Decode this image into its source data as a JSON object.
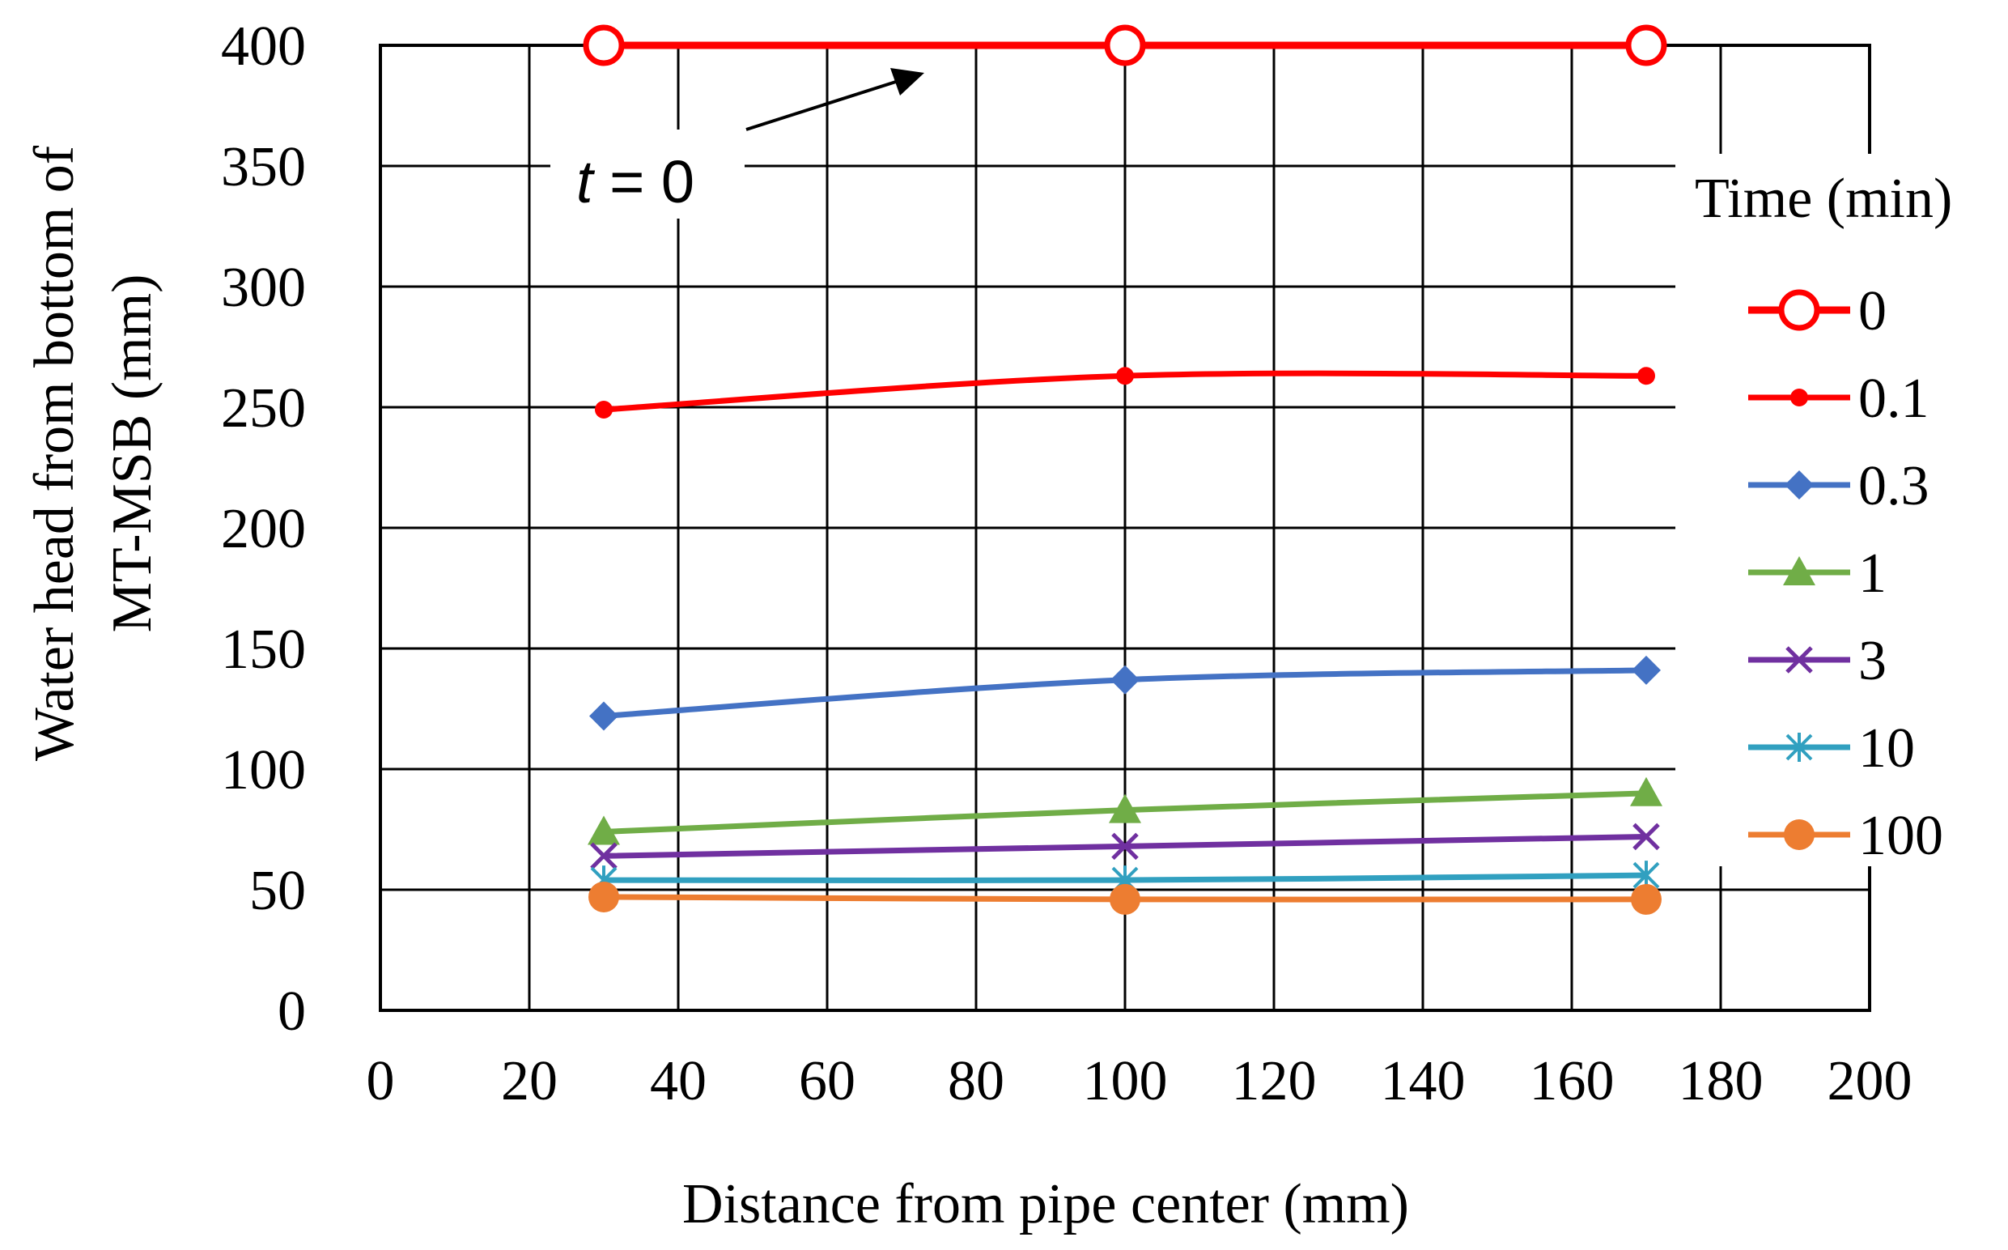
{
  "chart_data": {
    "type": "line",
    "title": "",
    "xlabel": "Distance from pipe center (mm)",
    "ylabel_lines": [
      "Water head  from bottom of",
      "MT-MSB (mm)"
    ],
    "xlim": [
      0,
      200
    ],
    "ylim": [
      0,
      400
    ],
    "x_ticks": [
      0,
      20,
      40,
      60,
      80,
      100,
      120,
      140,
      160,
      180,
      200
    ],
    "y_ticks": [
      0,
      50,
      100,
      150,
      200,
      250,
      300,
      350,
      400
    ],
    "grid": true,
    "legend_title": "Time (min)",
    "legend_position": "right",
    "annotation": {
      "italic": "t",
      "rest": " = 0"
    },
    "x": [
      30,
      100,
      170
    ],
    "series": [
      {
        "name": "0",
        "values": [
          400,
          400,
          400
        ],
        "color": "#ff0000",
        "marker": "open-circle"
      },
      {
        "name": "0.1",
        "values": [
          249,
          263,
          263
        ],
        "color": "#ff0000",
        "marker": "dot"
      },
      {
        "name": "0.3",
        "values": [
          122,
          137,
          141
        ],
        "color": "#4472c4",
        "marker": "diamond"
      },
      {
        "name": "1",
        "values": [
          74,
          83,
          90
        ],
        "color": "#70ad47",
        "marker": "triangle"
      },
      {
        "name": "3",
        "values": [
          64,
          68,
          72
        ],
        "color": "#7030a0",
        "marker": "x"
      },
      {
        "name": "10",
        "values": [
          54,
          54,
          56
        ],
        "color": "#31a0c0",
        "marker": "star"
      },
      {
        "name": "100",
        "values": [
          47,
          46,
          46
        ],
        "color": "#ed7d31",
        "marker": "filled-circle"
      }
    ]
  }
}
